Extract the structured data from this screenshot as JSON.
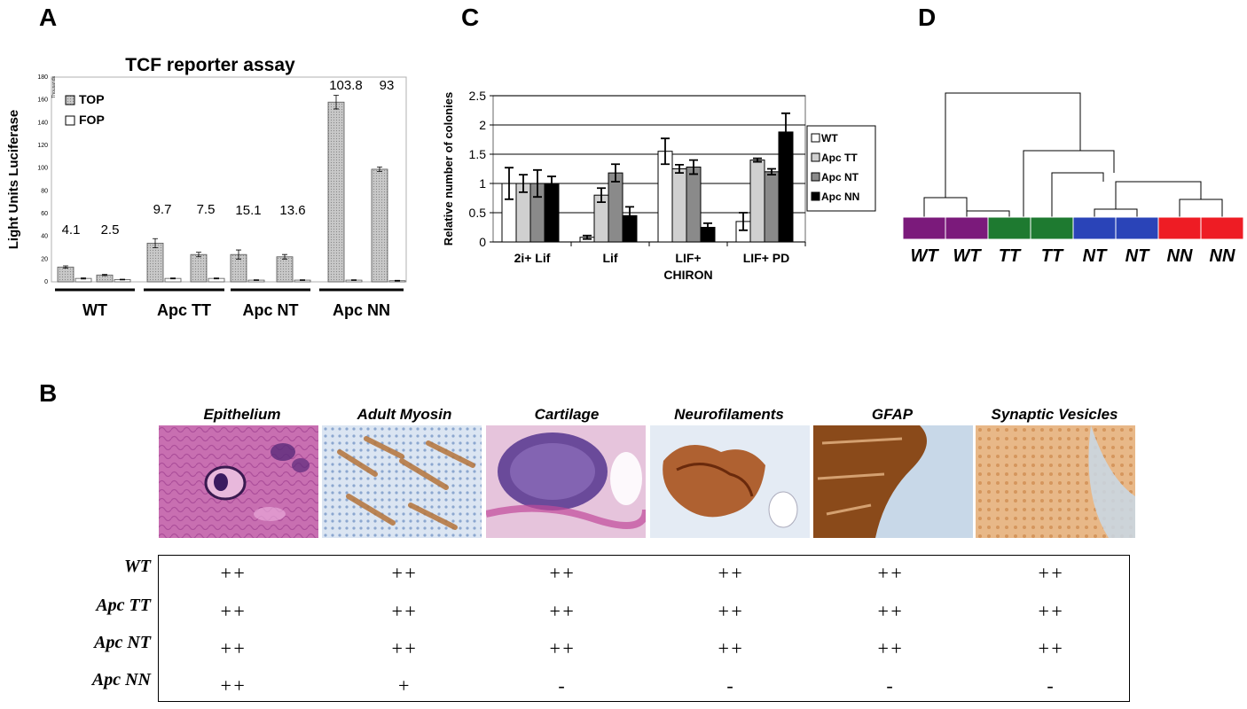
{
  "panels": {
    "a": "A",
    "b": "B",
    "c": "C",
    "d": "D"
  },
  "panel_a": {
    "title": "TCF reporter assay",
    "ylabel": "Light Units Luciferase",
    "unit_label": "Thousands",
    "legend": [
      "TOP",
      "FOP"
    ],
    "yticks": [
      "0",
      "20",
      "40",
      "60",
      "80",
      "100",
      "120",
      "140",
      "160",
      "180"
    ],
    "groups": [
      "WT",
      "Apc TT",
      "Apc NT",
      "Apc NN"
    ],
    "ratio_labels": [
      "4.1",
      "2.5",
      "9.7",
      "7.5",
      "15.1",
      "13.6",
      "103.8",
      "93"
    ]
  },
  "chart_data": [
    {
      "type": "bar",
      "title": "TCF reporter assay",
      "ylabel": "Light Units Luciferase",
      "ylim": [
        0,
        180
      ],
      "categories": [
        "WT",
        "WT",
        "Apc TT",
        "Apc TT",
        "Apc NT",
        "Apc NT",
        "Apc NN",
        "Apc NN"
      ],
      "series": [
        {
          "name": "TOP",
          "values": [
            13,
            6,
            34,
            24,
            24,
            22,
            158,
            99
          ],
          "errors": [
            1,
            0.5,
            4,
            2,
            4,
            2,
            6,
            2
          ]
        },
        {
          "name": "FOP",
          "values": [
            3,
            2,
            3,
            3,
            1.5,
            1.5,
            1.5,
            1
          ],
          "errors": [
            0.5,
            0.3,
            0.4,
            0.4,
            0.3,
            0.3,
            0.3,
            0.3
          ]
        }
      ],
      "annotations": [
        "4.1",
        "2.5",
        "9.7",
        "7.5",
        "15.1",
        "13.6",
        "103.8",
        "93"
      ]
    },
    {
      "type": "bar",
      "ylabel": "Relative number of colonies",
      "ylim": [
        0,
        2.5
      ],
      "yticks": [
        "0",
        "0.5",
        "1",
        "1.5",
        "2",
        "2.5"
      ],
      "categories": [
        "2i+ Lif",
        "Lif",
        "LIF+ CHIRON",
        "LIF+ PD"
      ],
      "series": [
        {
          "name": "WT",
          "color": "#ffffff",
          "values": [
            1.0,
            0.08,
            1.55,
            0.35
          ],
          "errors": [
            0.27,
            0.03,
            0.22,
            0.15
          ]
        },
        {
          "name": "Apc TT",
          "color": "#d0d0d0",
          "values": [
            1.0,
            0.8,
            1.25,
            1.4
          ],
          "errors": [
            0.15,
            0.12,
            0.07,
            0.03
          ]
        },
        {
          "name": "Apc NT",
          "color": "#8a8a8a",
          "values": [
            1.0,
            1.18,
            1.28,
            1.2
          ],
          "errors": [
            0.23,
            0.15,
            0.12,
            0.05
          ]
        },
        {
          "name": "Apc NN",
          "color": "#000000",
          "values": [
            1.0,
            0.45,
            0.25,
            1.88
          ],
          "errors": [
            0.12,
            0.15,
            0.07,
            0.32
          ]
        }
      ]
    }
  ],
  "panel_c": {
    "x_labels": [
      [
        "2i+ Lif"
      ],
      [
        "Lif"
      ],
      [
        "LIF+",
        "CHIRON"
      ],
      [
        "LIF+ PD"
      ]
    ],
    "legend": [
      "WT",
      "Apc TT",
      "Apc NT",
      "Apc NN"
    ]
  },
  "panel_d": {
    "labels": [
      "WT",
      "WT",
      "TT",
      "TT",
      "NT",
      "NT",
      "NN",
      "NN"
    ],
    "colors": [
      "#7b1a7b",
      "#7b1a7b",
      "#1e7a30",
      "#1e7a30",
      "#2a44b8",
      "#2a44b8",
      "#ee1c24",
      "#ee1c24"
    ]
  },
  "panel_b": {
    "stains": [
      "Epithelium",
      "Adult Myosin",
      "Cartilage",
      "Neurofilaments",
      "GFAP",
      "Synaptic Vesicles"
    ],
    "rows": [
      {
        "label": "WT",
        "values": [
          "++",
          "++",
          "++",
          "++",
          "++",
          "++"
        ]
      },
      {
        "label": "Apc TT",
        "values": [
          "++",
          "++",
          "++",
          "++",
          "++",
          "++"
        ]
      },
      {
        "label": "Apc NT",
        "values": [
          "++",
          "++",
          "++",
          "++",
          "++",
          "++"
        ]
      },
      {
        "label": "Apc NN",
        "values": [
          "++",
          "+",
          "-",
          "-",
          "-",
          "-"
        ]
      }
    ]
  }
}
